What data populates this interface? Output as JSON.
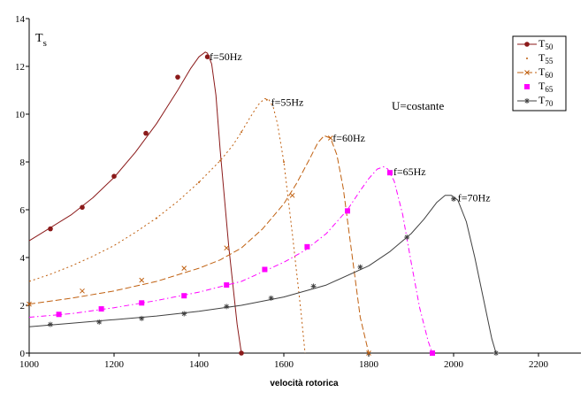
{
  "chart_data": {
    "type": "line",
    "title": "",
    "xlabel": "velocità rotorica",
    "ylabel": "",
    "ylabel_text": "T",
    "ylabel_sub": "s",
    "xlim": [
      1000,
      2300
    ],
    "ylim": [
      0,
      14
    ],
    "xticks": [
      1000,
      1200,
      1400,
      1600,
      1800,
      2000,
      2200
    ],
    "yticks": [
      0,
      2,
      4,
      6,
      8,
      10,
      12,
      14
    ],
    "grid": false,
    "legend_position": "top-right",
    "annotation": "U=costante",
    "series": [
      {
        "name": "T",
        "name_sub": "50",
        "label": "f=50Hz",
        "color": "#8b1a1a",
        "dash": "",
        "marker": "circle",
        "label_at": [
          1425,
          12.4
        ],
        "x": [
          1000,
          1050,
          1100,
          1150,
          1200,
          1250,
          1300,
          1350,
          1380,
          1400,
          1415,
          1420,
          1430,
          1440,
          1450,
          1470,
          1490,
          1500
        ],
        "y": [
          4.7,
          5.25,
          5.8,
          6.5,
          7.35,
          8.4,
          9.6,
          11.0,
          11.9,
          12.4,
          12.6,
          12.55,
          12.1,
          10.8,
          8.5,
          4.5,
          1.2,
          0.0
        ],
        "markers_x": [
          1050,
          1125,
          1200,
          1275,
          1350,
          1420,
          1500
        ],
        "markers_y": [
          5.2,
          6.1,
          7.4,
          9.2,
          11.55,
          12.4,
          0.0
        ]
      },
      {
        "name": "T",
        "name_sub": "55",
        "label": "f=55Hz",
        "color": "#c06010",
        "dash": "2,3",
        "marker": "dot",
        "label_at": [
          1570,
          10.5
        ],
        "x": [
          1000,
          1050,
          1100,
          1150,
          1200,
          1250,
          1300,
          1350,
          1400,
          1450,
          1480,
          1500,
          1520,
          1540,
          1555,
          1565,
          1575,
          1585,
          1600,
          1620,
          1640,
          1650
        ],
        "y": [
          3.0,
          3.3,
          3.65,
          4.05,
          4.5,
          5.05,
          5.65,
          6.35,
          7.15,
          8.05,
          8.7,
          9.25,
          9.85,
          10.4,
          10.65,
          10.6,
          10.3,
          9.6,
          8.0,
          5.0,
          1.8,
          0.0
        ],
        "markers_x": [
          1300,
          1400,
          1450,
          1500,
          1560,
          1600
        ],
        "markers_y": [
          5.65,
          7.15,
          8.05,
          9.25,
          10.6,
          8.0
        ]
      },
      {
        "name": "T",
        "name_sub": "60",
        "label": "f=60Hz",
        "color": "#c06010",
        "dash": "7,3",
        "marker": "cross",
        "label_at": [
          1715,
          9.0
        ],
        "x": [
          1000,
          1100,
          1200,
          1300,
          1400,
          1450,
          1500,
          1550,
          1600,
          1630,
          1660,
          1680,
          1695,
          1710,
          1725,
          1740,
          1760,
          1780,
          1800
        ],
        "y": [
          2.05,
          2.3,
          2.6,
          3.0,
          3.55,
          3.9,
          4.4,
          5.2,
          6.25,
          7.1,
          8.1,
          8.8,
          9.1,
          9.0,
          8.3,
          6.9,
          4.2,
          1.5,
          0.0
        ],
        "markers_x": [
          1000,
          1125,
          1265,
          1365,
          1465,
          1620,
          1710,
          1800
        ],
        "markers_y": [
          2.05,
          2.6,
          3.05,
          3.55,
          4.4,
          6.6,
          9.0,
          0.0
        ]
      },
      {
        "name": "T",
        "name_sub": "65",
        "label": "f=65Hz",
        "color": "#ff00ff",
        "dash": "6,3,1.5,3",
        "marker": "square",
        "label_at": [
          1858,
          7.6
        ],
        "x": [
          1000,
          1100,
          1200,
          1300,
          1400,
          1500,
          1600,
          1650,
          1700,
          1750,
          1780,
          1800,
          1820,
          1835,
          1845,
          1860,
          1880,
          1900,
          1920,
          1940,
          1950
        ],
        "y": [
          1.5,
          1.65,
          1.9,
          2.2,
          2.55,
          3.0,
          3.8,
          4.3,
          5.0,
          6.0,
          6.8,
          7.3,
          7.7,
          7.8,
          7.7,
          7.2,
          5.8,
          3.8,
          1.9,
          0.5,
          0.0
        ],
        "markers_x": [
          1070,
          1170,
          1265,
          1365,
          1465,
          1555,
          1655,
          1750,
          1850,
          1950
        ],
        "markers_y": [
          1.62,
          1.85,
          2.1,
          2.4,
          2.85,
          3.5,
          4.45,
          5.95,
          7.55,
          0.0
        ]
      },
      {
        "name": "T",
        "name_sub": "70",
        "label": "f=70Hz",
        "color": "#404040",
        "dash": "",
        "marker": "star",
        "label_at": [
          2010,
          6.5
        ],
        "x": [
          1000,
          1100,
          1200,
          1300,
          1400,
          1500,
          1600,
          1700,
          1800,
          1850,
          1900,
          1930,
          1960,
          1980,
          1995,
          2010,
          2030,
          2050,
          2070,
          2090,
          2100
        ],
        "y": [
          1.1,
          1.25,
          1.4,
          1.55,
          1.75,
          2.0,
          2.35,
          2.85,
          3.65,
          4.25,
          5.0,
          5.6,
          6.3,
          6.6,
          6.6,
          6.4,
          5.5,
          4.0,
          2.3,
          0.6,
          0.0
        ],
        "markers_x": [
          1050,
          1165,
          1265,
          1365,
          1465,
          1570,
          1670,
          1780,
          1890,
          2000,
          2100
        ],
        "markers_y": [
          1.2,
          1.3,
          1.45,
          1.65,
          1.95,
          2.3,
          2.8,
          3.6,
          4.85,
          6.45,
          0.0
        ]
      }
    ]
  }
}
